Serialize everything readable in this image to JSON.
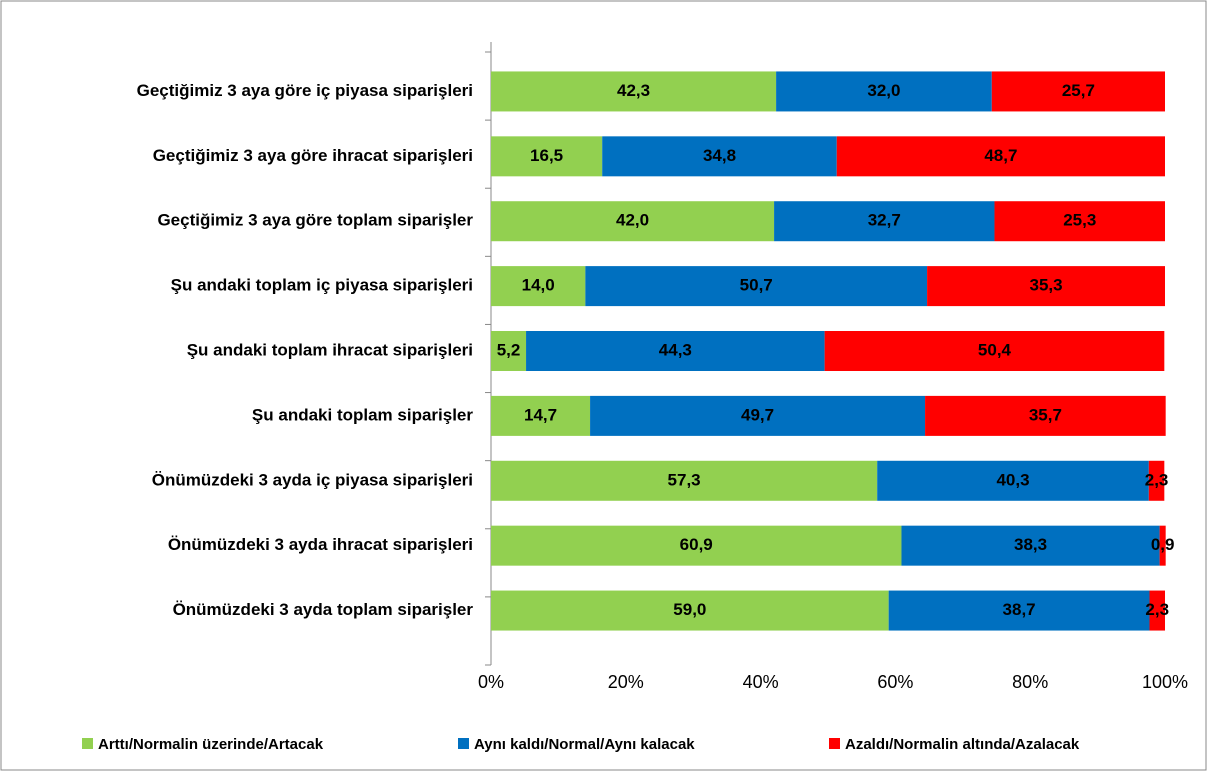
{
  "chart_data": {
    "type": "stacked_barh",
    "categories": [
      "Geçtiğimiz 3 aya göre iç piyasa siparişleri",
      "Geçtiğimiz 3 aya göre ihracat siparişleri",
      "Geçtiğimiz 3 aya göre toplam siparişler",
      "Şu andaki toplam iç piyasa siparişleri",
      "Şu andaki toplam ihracat siparişleri",
      "Şu andaki toplam siparişler",
      "Önümüzdeki 3 ayda iç piyasa siparişleri",
      "Önümüzdeki 3 ayda ihracat siparişleri",
      "Önümüzdeki 3 ayda toplam siparişler"
    ],
    "series": [
      {
        "name": "Arttı/Normalin üzerinde/Artacak",
        "color": "#92d050",
        "values": [
          42.3,
          16.5,
          42.0,
          14.0,
          5.2,
          14.7,
          57.3,
          60.9,
          59.0
        ],
        "value_labels": [
          "42,3",
          "16,5",
          "42,0",
          "14,0",
          "5,2",
          "14,7",
          "57,3",
          "60,9",
          "59,0"
        ]
      },
      {
        "name": "Aynı kaldı/Normal/Aynı kalacak",
        "color": "#0070c0",
        "values": [
          32.0,
          34.8,
          32.7,
          50.7,
          44.3,
          49.7,
          40.3,
          38.3,
          38.7
        ],
        "value_labels": [
          "32,0",
          "34,8",
          "32,7",
          "50,7",
          "44,3",
          "49,7",
          "40,3",
          "38,3",
          "38,7"
        ]
      },
      {
        "name": "Azaldı/Normalin altında/Azalacak",
        "color": "#ff0000",
        "values": [
          25.7,
          48.7,
          25.3,
          35.3,
          50.4,
          35.7,
          2.3,
          0.9,
          2.3
        ],
        "value_labels": [
          "25,7",
          "48,7",
          "25,3",
          "35,3",
          "50,4",
          "35,7",
          "2,3",
          "0,9",
          "2,3"
        ]
      }
    ],
    "xlim": [
      0,
      100
    ],
    "xticks": [
      {
        "value": 0,
        "label": "0%"
      },
      {
        "value": 20,
        "label": "20%"
      },
      {
        "value": 40,
        "label": "40%"
      },
      {
        "value": 60,
        "label": "60%"
      },
      {
        "value": 80,
        "label": "80%"
      },
      {
        "value": 100,
        "label": "100%"
      }
    ],
    "legend": "bottom"
  }
}
